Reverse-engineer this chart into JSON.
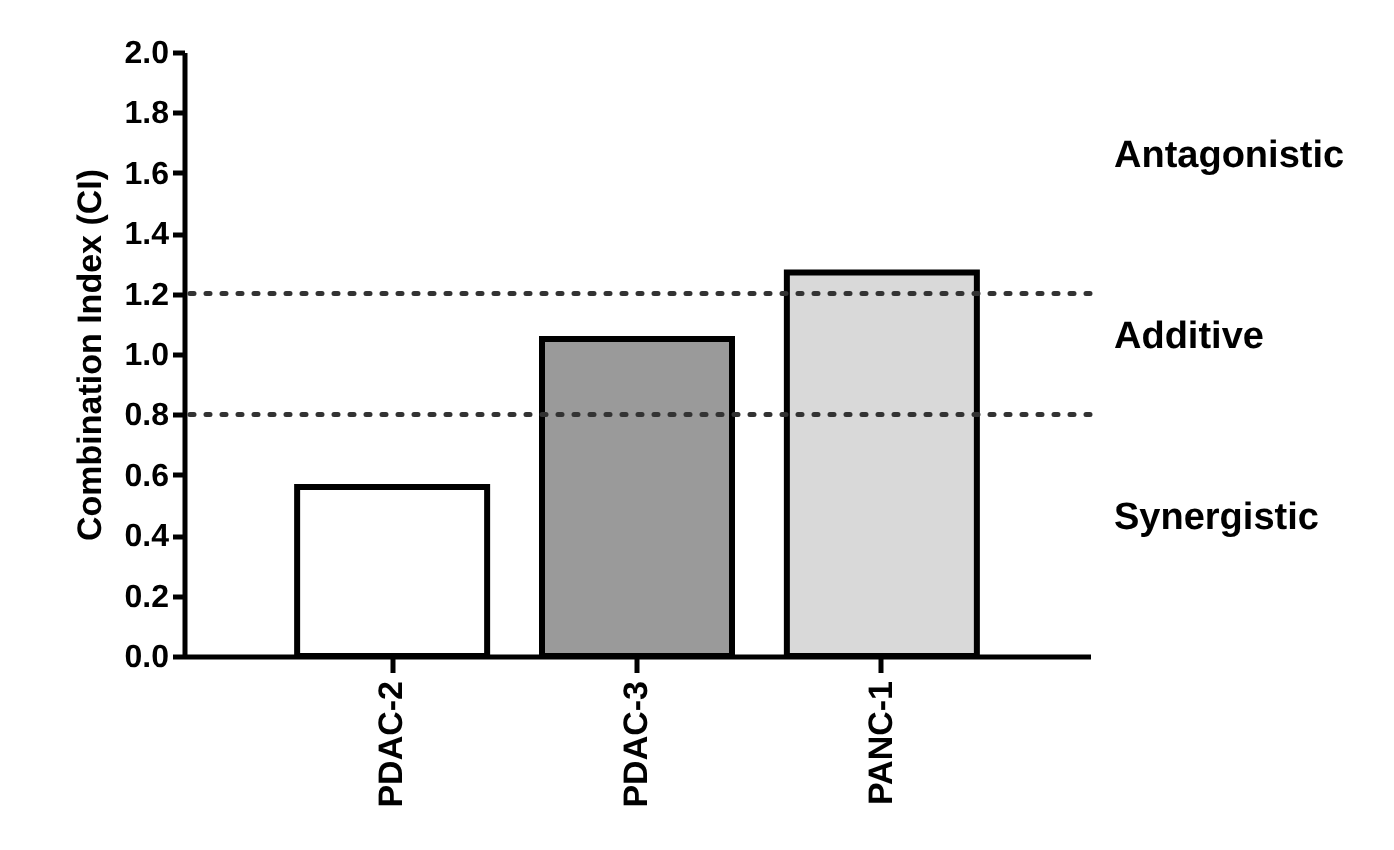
{
  "chart_data": {
    "type": "bar",
    "ylabel": "Combination Index  (CI)",
    "categories": [
      "PDAC-2",
      "PDAC-3",
      "PANC-1"
    ],
    "values": [
      0.56,
      1.05,
      1.27
    ],
    "colors": [
      "#ffffff",
      "#9a9a9a",
      "#d9d9d9"
    ],
    "ylim": [
      0,
      2
    ],
    "yticks": [
      {
        "value": 0,
        "label": "0.0"
      },
      {
        "value": 0.2,
        "label": "0.2"
      },
      {
        "value": 0.4,
        "label": "0.4"
      },
      {
        "value": 0.6,
        "label": "0.6"
      },
      {
        "value": 0.8,
        "label": "0.8"
      },
      {
        "value": 1,
        "label": "1.0"
      },
      {
        "value": 1.2,
        "label": "1.2"
      },
      {
        "value": 1.4,
        "label": "1.4"
      },
      {
        "value": 1.6,
        "label": "1.6"
      },
      {
        "value": 1.8,
        "label": "1.8"
      },
      {
        "value": 2,
        "label": "2.0"
      }
    ],
    "grid": false,
    "ref_lines": [
      {
        "axis": "y",
        "value": 0.8,
        "line_style": "dotted"
      },
      {
        "axis": "y",
        "value": 1.2,
        "line_style": "dotted"
      }
    ],
    "annotations": [
      "Antagonistic",
      "Additive",
      "Synergistic"
    ]
  }
}
